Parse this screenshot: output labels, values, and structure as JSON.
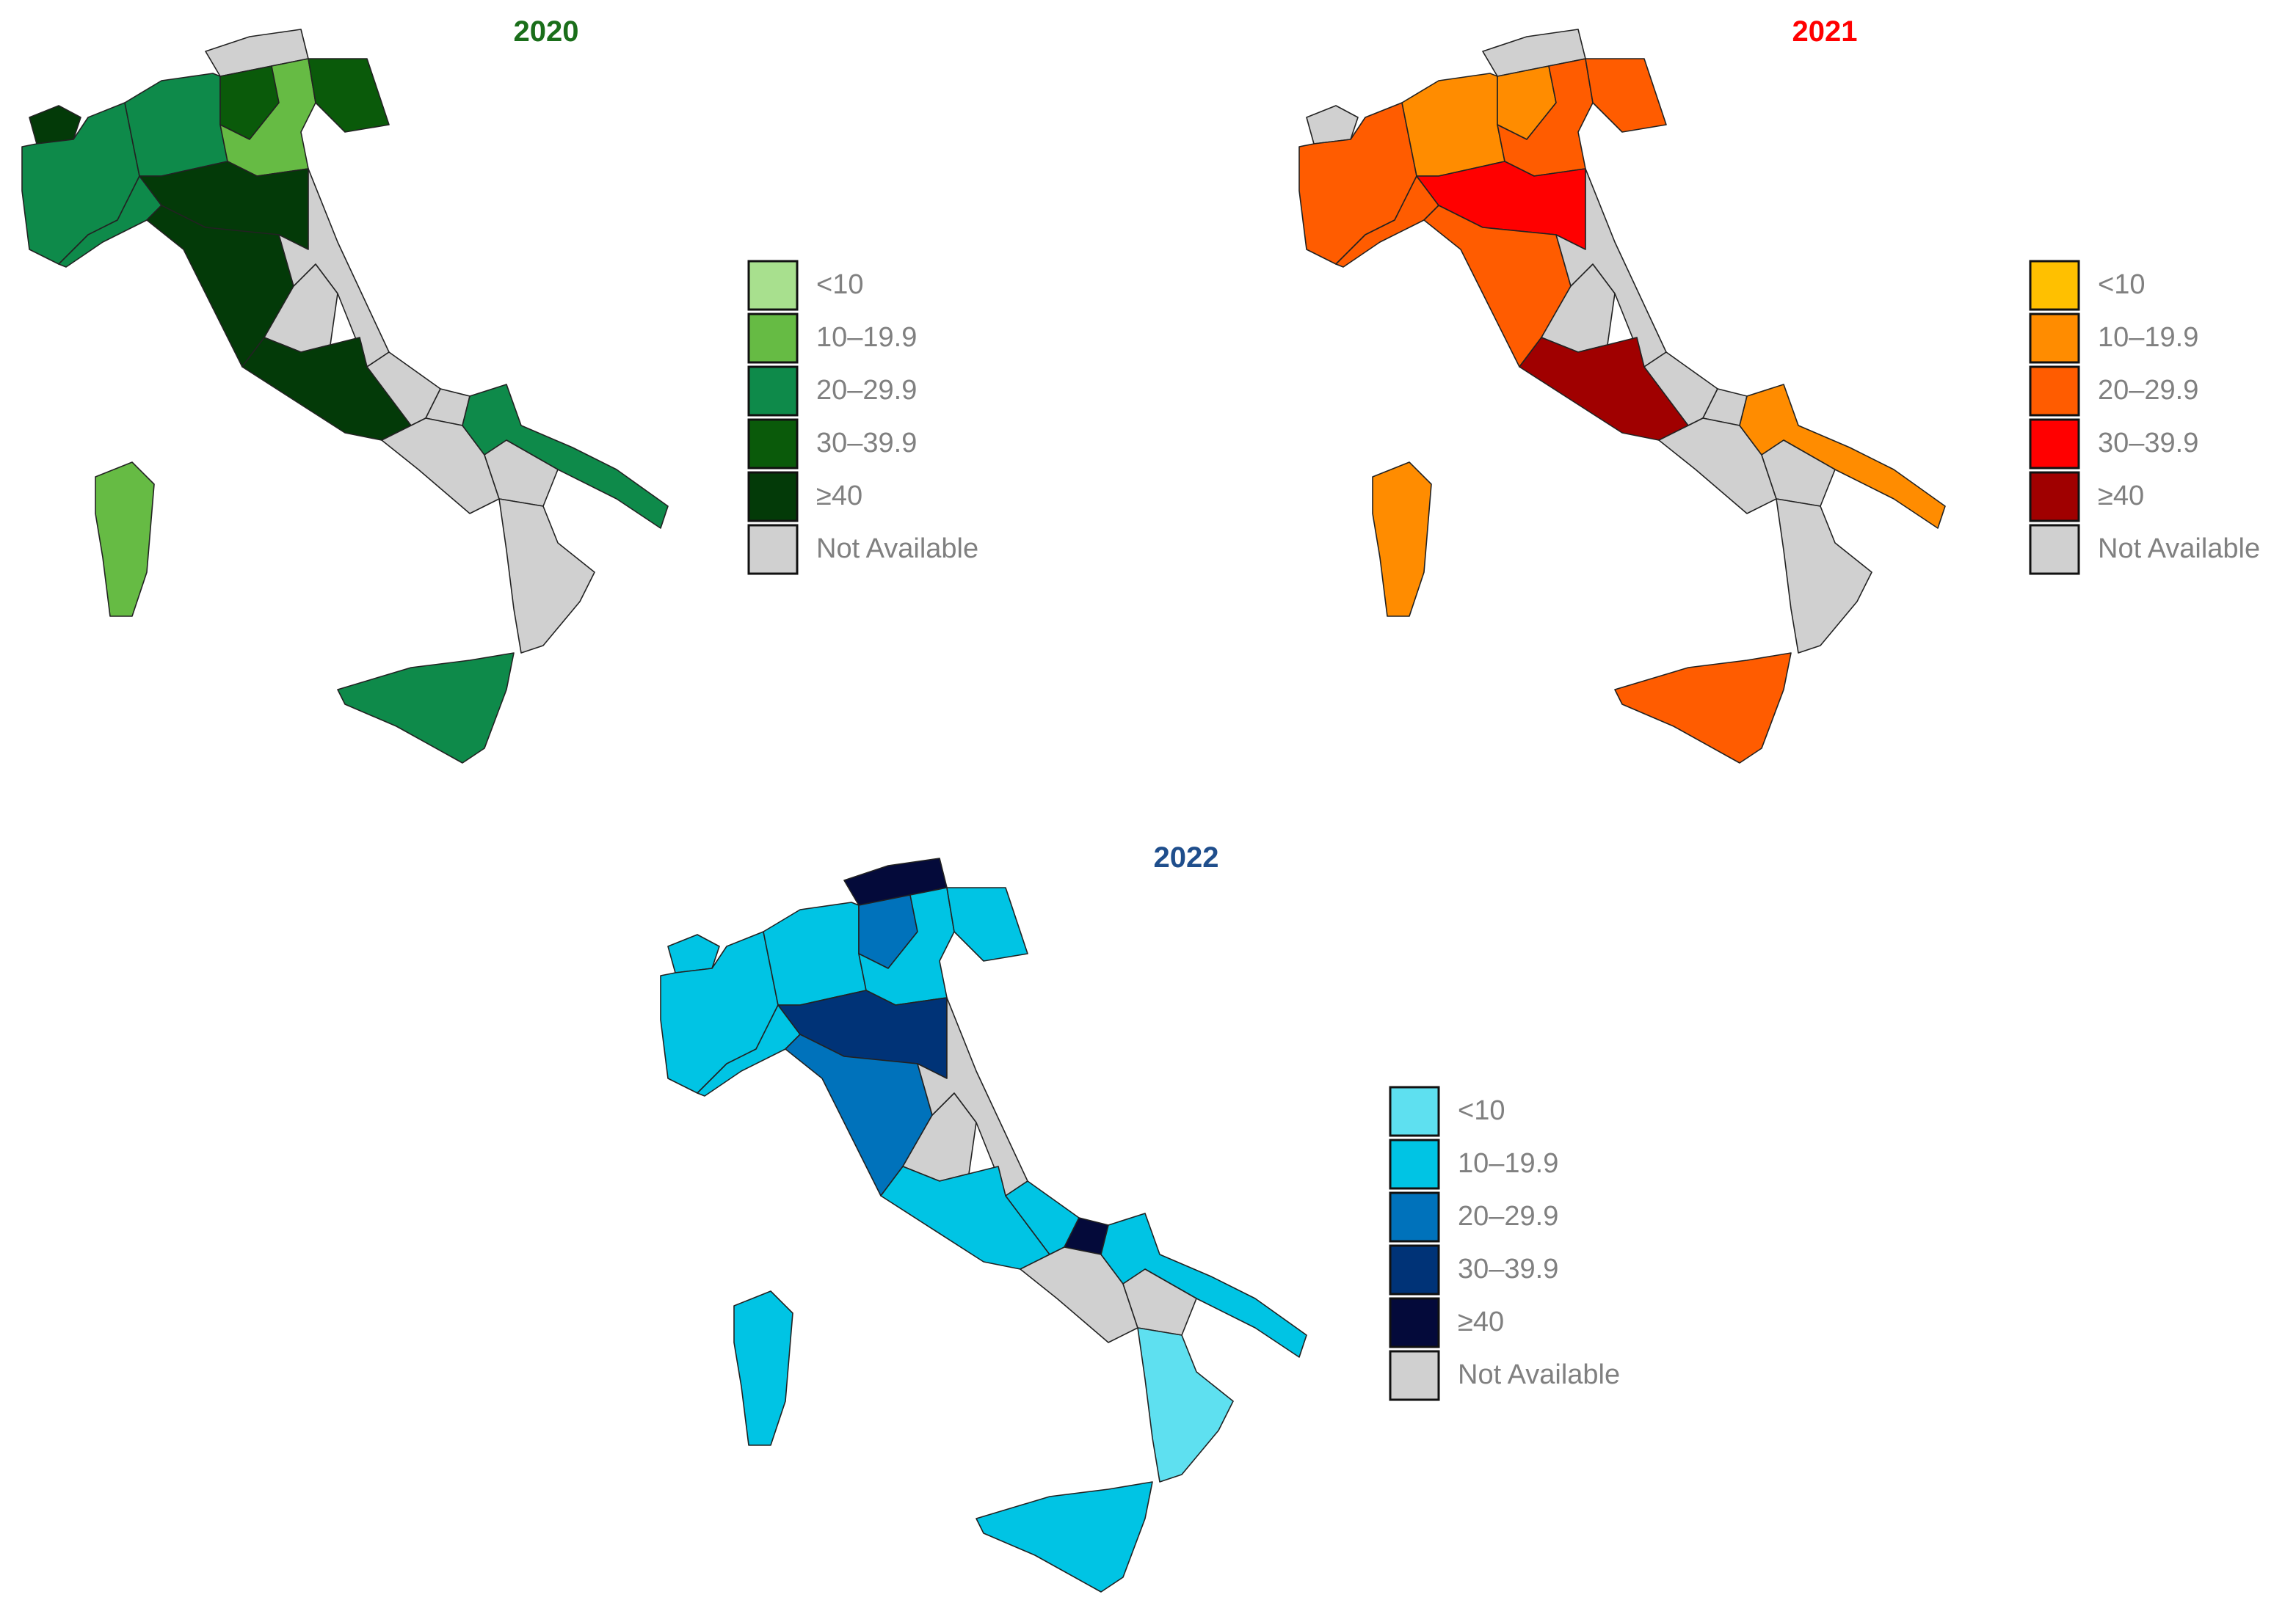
{
  "maps": [
    {
      "title": "2020",
      "title_color": "#1a6e1a",
      "legend": [
        {
          "label": "<10",
          "color": "#a8e08e"
        },
        {
          "label": "10–19.9",
          "color": "#66bb44"
        },
        {
          "label": "20–29.9",
          "color": "#0e8a4a"
        },
        {
          "label": "30–39.9",
          "color": "#0a5a0a"
        },
        {
          "label": "≥40",
          "color": "#033a08"
        },
        {
          "label": "Not Available",
          "color": "#d0d0d0"
        }
      ]
    },
    {
      "title": "2021",
      "title_color": "#ff0000",
      "legend": [
        {
          "label": "<10",
          "color": "#ffc000"
        },
        {
          "label": "10–19.9",
          "color": "#ff8c00"
        },
        {
          "label": "20–29.9",
          "color": "#ff5c00"
        },
        {
          "label": "30–39.9",
          "color": "#ff0000"
        },
        {
          "label": "≥40",
          "color": "#a00000"
        },
        {
          "label": "Not Available",
          "color": "#d0d0d0"
        }
      ]
    },
    {
      "title": "2022",
      "title_color": "#1f4e8c",
      "legend": [
        {
          "label": "<10",
          "color": "#5ee0f0"
        },
        {
          "label": "10–19.9",
          "color": "#00c4e4"
        },
        {
          "label": "20–29.9",
          "color": "#0072bb"
        },
        {
          "label": "30–39.9",
          "color": "#003377"
        },
        {
          "label": "≥40",
          "color": "#040a3a"
        },
        {
          "label": "Not Available",
          "color": "#d0d0d0"
        }
      ]
    }
  ]
}
